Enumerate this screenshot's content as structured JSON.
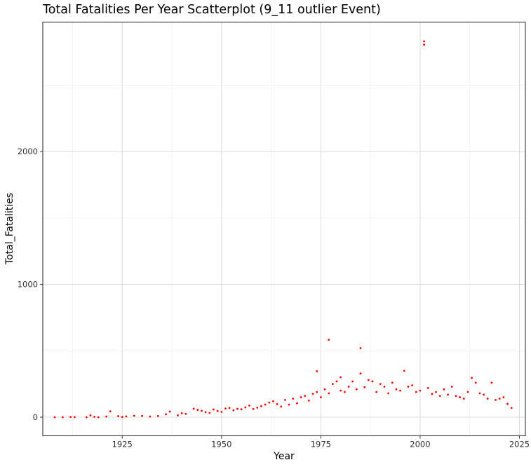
{
  "chart_data": {
    "type": "scatter",
    "title": "Total Fatalities Per Year Scatterplot (9_11 outlier Event)",
    "xlabel": "Year",
    "ylabel": "Total_Fatalities",
    "xlim": [
      1905,
      2026.5
    ],
    "ylim": [
      -140,
      2975
    ],
    "x_ticks": [
      1925,
      1950,
      1975,
      2000,
      2025
    ],
    "y_ticks": [
      0,
      1000,
      2000
    ],
    "grid": true,
    "point_color": "#ff0000",
    "series": [
      {
        "values": [
          [
            1908,
            0
          ],
          [
            1910,
            0
          ],
          [
            1912,
            2
          ],
          [
            1913,
            1
          ],
          [
            1916,
            0
          ],
          [
            1917,
            14
          ],
          [
            1918,
            3
          ],
          [
            1919,
            0
          ],
          [
            1921,
            5
          ],
          [
            1922,
            44
          ],
          [
            1924,
            8
          ],
          [
            1925,
            2
          ],
          [
            1926,
            6
          ],
          [
            1928,
            11
          ],
          [
            1930,
            10
          ],
          [
            1932,
            5
          ],
          [
            1934,
            9
          ],
          [
            1936,
            22
          ],
          [
            1937,
            42
          ],
          [
            1939,
            14
          ],
          [
            1940,
            30
          ],
          [
            1941,
            25
          ],
          [
            1943,
            64
          ],
          [
            1944,
            55
          ],
          [
            1945,
            48
          ],
          [
            1946,
            38
          ],
          [
            1947,
            33
          ],
          [
            1948,
            58
          ],
          [
            1949,
            47
          ],
          [
            1950,
            40
          ],
          [
            1951,
            65
          ],
          [
            1952,
            70
          ],
          [
            1953,
            52
          ],
          [
            1954,
            63
          ],
          [
            1955,
            60
          ],
          [
            1956,
            74
          ],
          [
            1957,
            88
          ],
          [
            1958,
            62
          ],
          [
            1959,
            72
          ],
          [
            1960,
            83
          ],
          [
            1961,
            95
          ],
          [
            1962,
            110
          ],
          [
            1963,
            120
          ],
          [
            1964,
            98
          ],
          [
            1965,
            80
          ],
          [
            1966,
            130
          ],
          [
            1967,
            95
          ],
          [
            1968,
            140
          ],
          [
            1969,
            105
          ],
          [
            1970,
            150
          ],
          [
            1971,
            160
          ],
          [
            1972,
            125
          ],
          [
            1973,
            176
          ],
          [
            1974,
            346
          ],
          [
            1974,
            190
          ],
          [
            1975,
            150
          ],
          [
            1976,
            210
          ],
          [
            1977,
            583
          ],
          [
            1977,
            180
          ],
          [
            1978,
            250
          ],
          [
            1979,
            270
          ],
          [
            1980,
            301
          ],
          [
            1980,
            200
          ],
          [
            1981,
            190
          ],
          [
            1982,
            230
          ],
          [
            1983,
            269
          ],
          [
            1984,
            210
          ],
          [
            1985,
            520
          ],
          [
            1985,
            329
          ],
          [
            1986,
            226
          ],
          [
            1987,
            280
          ],
          [
            1988,
            270
          ],
          [
            1989,
            190
          ],
          [
            1990,
            250
          ],
          [
            1991,
            230
          ],
          [
            1992,
            180
          ],
          [
            1993,
            260
          ],
          [
            1994,
            210
          ],
          [
            1995,
            200
          ],
          [
            1996,
            349
          ],
          [
            1997,
            230
          ],
          [
            1998,
            240
          ],
          [
            1999,
            190
          ],
          [
            2000,
            200
          ],
          [
            2001,
            2830
          ],
          [
            2001,
            2805
          ],
          [
            2002,
            220
          ],
          [
            2003,
            175
          ],
          [
            2004,
            190
          ],
          [
            2005,
            160
          ],
          [
            2006,
            210
          ],
          [
            2007,
            170
          ],
          [
            2008,
            230
          ],
          [
            2009,
            160
          ],
          [
            2010,
            150
          ],
          [
            2011,
            140
          ],
          [
            2012,
            190
          ],
          [
            2013,
            296
          ],
          [
            2014,
            260
          ],
          [
            2015,
            180
          ],
          [
            2016,
            170
          ],
          [
            2017,
            140
          ],
          [
            2018,
            260
          ],
          [
            2019,
            130
          ],
          [
            2020,
            140
          ],
          [
            2021,
            150
          ],
          [
            2022,
            100
          ],
          [
            2023,
            70
          ]
        ]
      }
    ]
  }
}
